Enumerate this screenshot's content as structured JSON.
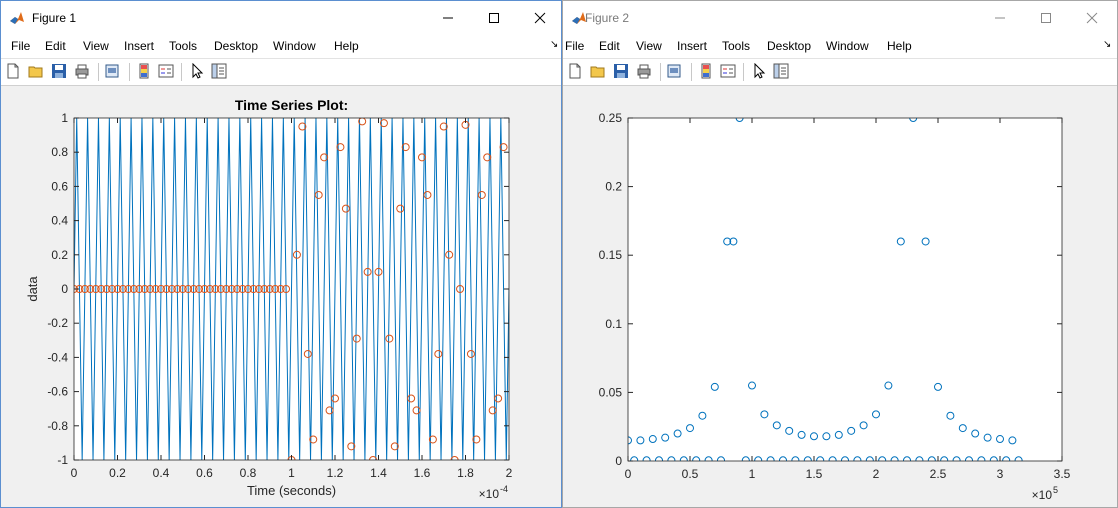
{
  "figure1": {
    "title": "Figure 1",
    "menu": [
      "File",
      "Edit",
      "View",
      "Insert",
      "Tools",
      "Desktop",
      "Window",
      "Help"
    ],
    "toolbar": [
      "new-file-icon",
      "open-folder-icon",
      "save-icon",
      "print-icon",
      "print-preview-icon",
      "colorbar-icon",
      "legend-icon",
      "pointer-icon",
      "property-inspector-icon"
    ],
    "chart_data": {
      "type": "line",
      "title": "Time Series Plot:",
      "xlabel": "Time (seconds)",
      "ylabel": "data",
      "x_exponent_label": "×10",
      "x_exponent_power": "-4",
      "xlim": [
        0,
        2
      ],
      "ylim": [
        -1,
        1
      ],
      "xticks": [
        "0",
        "0.2",
        "0.4",
        "0.6",
        "0.8",
        "1",
        "1.2",
        "1.4",
        "1.6",
        "1.8",
        "2"
      ],
      "yticks": [
        "1",
        "0.8",
        "0.6",
        "0.4",
        "0.2",
        "0",
        "-0.2",
        "-0.4",
        "-0.6",
        "-0.8",
        "-1"
      ],
      "grid": false,
      "series": [
        {
          "color": "#0072bd",
          "style": "line",
          "x": [
            0,
            0.0125,
            0.025,
            0.0375,
            0.05,
            0.0625,
            0.075,
            0.0875,
            0.1,
            0.1125,
            0.125,
            0.1375,
            0.15,
            0.1625,
            0.175,
            0.1875,
            0.2,
            0.2125,
            0.225,
            0.2375,
            0.25,
            0.2625,
            0.275,
            0.2875,
            0.3,
            0.3125,
            0.325,
            0.3375,
            0.35,
            0.3625,
            0.375,
            0.3875,
            0.4,
            0.4125,
            0.425,
            0.4375,
            0.45,
            0.4625,
            0.475,
            0.4875,
            0.5,
            0.5125,
            0.525,
            0.5375,
            0.55,
            0.5625,
            0.575,
            0.5875,
            0.6,
            0.6125,
            0.625,
            0.6375,
            0.65,
            0.6625,
            0.675,
            0.6875,
            0.7,
            0.7125,
            0.725,
            0.7375,
            0.75,
            0.7625,
            0.775,
            0.7875,
            0.8,
            0.8125,
            0.825,
            0.8375,
            0.85,
            0.8625,
            0.875,
            0.8875,
            0.9,
            0.9125,
            0.925,
            0.9375,
            0.95,
            0.9625,
            0.975,
            0.9875,
            1,
            1.0125,
            1.025,
            1.0375,
            1.05,
            1.0625,
            1.075,
            1.0875,
            1.1,
            1.1125,
            1.125,
            1.1375,
            1.15,
            1.1625,
            1.175,
            1.1875,
            1.2,
            1.2125,
            1.225,
            1.2375,
            1.25,
            1.2625,
            1.275,
            1.2875,
            1.3,
            1.3125,
            1.325,
            1.3375,
            1.35,
            1.3625,
            1.375,
            1.3875,
            1.4,
            1.4125,
            1.425,
            1.4375,
            1.45,
            1.4625,
            1.475,
            1.4875,
            1.5,
            1.5125,
            1.525,
            1.5375,
            1.55,
            1.5625,
            1.575,
            1.5875,
            1.6,
            1.6125,
            1.625,
            1.6375,
            1.65,
            1.6625,
            1.675,
            1.6875,
            1.7,
            1.7125,
            1.725,
            1.7375,
            1.75,
            1.7625,
            1.775,
            1.7875,
            1.8,
            1.8125,
            1.825,
            1.8375,
            1.85,
            1.8625,
            1.875,
            1.8875,
            1.9,
            1.9125,
            1.925,
            1.9375,
            1.95,
            1.9625,
            1.975,
            1.9875,
            2
          ],
          "y": [
            0,
            1,
            0,
            -1,
            0,
            1,
            0,
            -1,
            0,
            1,
            0,
            -1,
            0,
            1,
            0,
            -1,
            0,
            1,
            0,
            -1,
            0,
            1,
            0,
            -1,
            0,
            1,
            0,
            -1,
            0,
            1,
            0,
            -1,
            0,
            1,
            0,
            -1,
            0,
            1,
            0,
            -1,
            0,
            1,
            0,
            -1,
            0,
            1,
            0,
            -1,
            0,
            1,
            0,
            -1,
            0,
            1,
            0,
            -1,
            0,
            1,
            0,
            -1,
            0,
            1,
            0,
            -1,
            0,
            1,
            0,
            -1,
            0,
            1,
            0,
            -1,
            0,
            1,
            0,
            -1,
            0,
            1,
            0,
            -1,
            0,
            1,
            0,
            -1,
            0,
            1,
            0,
            -1,
            0,
            1,
            0,
            -1,
            0,
            1,
            0,
            -1,
            0,
            1,
            0,
            -1,
            0,
            1,
            0,
            -1,
            0,
            1,
            0,
            -1,
            0,
            1,
            0,
            -1,
            0,
            1,
            0,
            -1,
            0,
            1,
            0,
            -1,
            0,
            1,
            0,
            -1,
            0,
            1,
            0,
            -1,
            0,
            1,
            0,
            -1,
            0,
            1,
            0,
            -1,
            0,
            1,
            0,
            -1,
            0,
            1,
            0,
            -1,
            0,
            1,
            0,
            -1,
            0,
            1,
            0,
            -1,
            0,
            1,
            0,
            -1,
            0,
            1,
            0,
            -1,
            0
          ]
        },
        {
          "color": "#d95319",
          "style": "circle",
          "x": [
            0,
            0.025,
            0.05,
            0.075,
            0.1,
            0.125,
            0.15,
            0.175,
            0.2,
            0.225,
            0.25,
            0.275,
            0.3,
            0.325,
            0.35,
            0.375,
            0.4,
            0.425,
            0.45,
            0.475,
            0.5,
            0.525,
            0.55,
            0.575,
            0.6,
            0.625,
            0.65,
            0.675,
            0.7,
            0.725,
            0.75,
            0.775,
            0.8,
            0.825,
            0.85,
            0.875,
            0.9,
            0.925,
            0.95,
            0.975,
            1,
            1.025,
            1.05,
            1.075,
            1.1,
            1.125,
            1.15,
            1.175,
            1.2,
            1.225,
            1.25,
            1.275,
            1.3,
            1.325,
            1.35,
            1.375,
            1.4,
            1.425,
            1.45,
            1.475,
            1.5,
            1.525,
            1.55,
            1.575,
            1.6,
            1.625,
            1.65,
            1.675,
            1.7,
            1.725,
            1.75,
            1.775,
            1.8,
            1.825,
            1.85,
            1.875,
            1.9,
            1.925,
            1.95,
            1.975
          ],
          "y": [
            0,
            0,
            0,
            0,
            0,
            0,
            0,
            0,
            0,
            0,
            0,
            0,
            0,
            0,
            0,
            0,
            0,
            0,
            0,
            0,
            0,
            0,
            0,
            0,
            0,
            0,
            0,
            0,
            0,
            0,
            0,
            0,
            0,
            0,
            0,
            0,
            0,
            0,
            0,
            0,
            -1,
            0.2,
            0.95,
            -0.38,
            -0.88,
            0.55,
            0.77,
            -0.71,
            -0.64,
            0.83,
            0.47,
            -0.92,
            -0.29,
            0.98,
            0.1,
            -1,
            0.1,
            0.97,
            -0.29,
            -0.92,
            0.47,
            0.83,
            -0.64,
            -0.71,
            0.77,
            0.55,
            -0.88,
            -0.38,
            0.95,
            0.2,
            -1,
            0,
            0.96,
            -0.38,
            -0.88,
            0.55,
            0.77,
            -0.71,
            -0.64,
            0.83
          ]
        }
      ]
    }
  },
  "figure2": {
    "title": "Figure 2",
    "menu": [
      "File",
      "Edit",
      "View",
      "Insert",
      "Tools",
      "Desktop",
      "Window",
      "Help"
    ],
    "toolbar": [
      "new-file-icon",
      "open-folder-icon",
      "save-icon",
      "print-icon",
      "print-preview-icon",
      "colorbar-icon",
      "legend-icon",
      "pointer-icon",
      "property-inspector-icon"
    ],
    "chart_data": {
      "type": "scatter",
      "title": "",
      "xlabel": "",
      "ylabel": "",
      "x_exponent_label": "×10",
      "x_exponent_power": "5",
      "xlim": [
        0,
        3.5
      ],
      "ylim": [
        0,
        0.25
      ],
      "xticks": [
        "0",
        "0.5",
        "1",
        "1.5",
        "2",
        "2.5",
        "3",
        "3.5"
      ],
      "yticks": [
        "0.25",
        "0.2",
        "0.15",
        "0.1",
        "0.05",
        "0"
      ],
      "grid": false,
      "series": [
        {
          "color": "#0072bd",
          "style": "circle",
          "x": [
            0,
            0.1,
            0.2,
            0.3,
            0.4,
            0.5,
            0.6,
            0.7,
            0.8,
            0.9,
            1.0,
            1.1,
            1.2,
            1.3,
            1.4,
            1.5,
            1.6,
            1.7,
            1.8,
            1.9,
            2.0,
            2.1,
            2.2,
            2.3,
            2.4,
            2.5,
            2.6,
            2.7,
            2.8,
            2.9,
            3.0,
            3.1
          ],
          "y": [
            0.015,
            0.015,
            0.016,
            0.017,
            0.02,
            0.024,
            0.033,
            0.054,
            0.16,
            0.25,
            0.055,
            0.034,
            0.026,
            0.022,
            0.019,
            0.018,
            0.018,
            0.019,
            0.022,
            0.026,
            0.034,
            0.055,
            0.16,
            0.25,
            0.16,
            0.054,
            0.033,
            0.024,
            0.02,
            0.017,
            0.016,
            0.015
          ]
        },
        {
          "color": "#0072bd",
          "style": "circle",
          "x": [
            0.05,
            0.15,
            0.25,
            0.35,
            0.45,
            0.55,
            0.65,
            0.75,
            0.85,
            0.95,
            1.05,
            1.15,
            1.25,
            1.35,
            1.45,
            1.55,
            1.65,
            1.75,
            1.85,
            1.95,
            2.05,
            2.15,
            2.25,
            2.35,
            2.45,
            2.55,
            2.65,
            2.75,
            2.85,
            2.95,
            3.05,
            3.15
          ],
          "y": [
            0.0005,
            0.0005,
            0.0005,
            0.0005,
            0.0005,
            0.0005,
            0.0005,
            0.0005,
            0.16,
            0.0005,
            0.0005,
            0.0005,
            0.0005,
            0.0005,
            0.0005,
            0.0005,
            0.0005,
            0.0005,
            0.0005,
            0.0005,
            0.0005,
            0.0005,
            0.0005,
            0.0005,
            0.0005,
            0.0005,
            0.0005,
            0.0005,
            0.0005,
            0.0005,
            0.0005,
            0.0005
          ]
        }
      ]
    }
  }
}
